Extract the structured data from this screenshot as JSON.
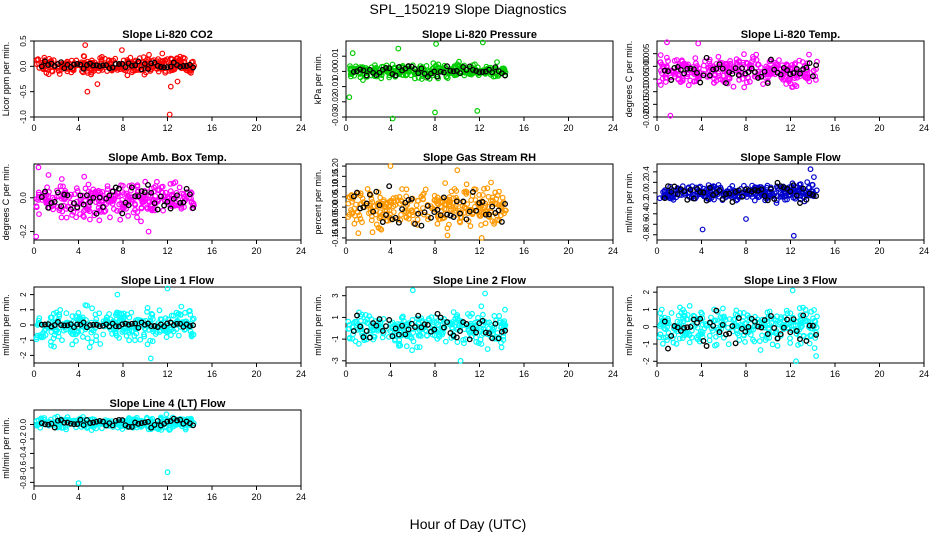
{
  "figure": {
    "title": "SPL_150219  Slope Diagnostics",
    "xlabel": "Hour of Day (UTC)"
  },
  "chart_data": [
    {
      "type": "scatter",
      "title": "Slope Li-820 CO2",
      "ylabel": "Licor ppm per min.",
      "color": "#ff0000",
      "xlim": [
        0,
        24
      ],
      "ylim": [
        -1.0,
        0.5
      ],
      "xticks": [
        0,
        4,
        8,
        12,
        16,
        20,
        24
      ],
      "yticks": [
        -1.0,
        -0.5,
        0.0,
        0.5
      ],
      "ytick_labels": [
        "-1.0",
        "-0.5",
        "0.0",
        "0.5"
      ],
      "x_range": [
        0.2,
        14.4
      ],
      "center": 0.02,
      "spread": 0.14,
      "black_spread": 0.06,
      "outliers": [
        {
          "x": 12.2,
          "y": -0.95
        },
        {
          "x": 12.3,
          "y": -0.4
        },
        {
          "x": 4.8,
          "y": -0.5
        },
        {
          "x": 5.7,
          "y": -0.35
        },
        {
          "x": 7.9,
          "y": 0.32
        },
        {
          "x": 4.6,
          "y": 0.42
        },
        {
          "x": 12.9,
          "y": -0.3
        }
      ]
    },
    {
      "type": "scatter",
      "title": "Slope Li-820 Pressure",
      "ylabel": "kPa per min.",
      "color": "#00cc00",
      "xlim": [
        0,
        24
      ],
      "ylim": [
        -0.03,
        0.02
      ],
      "xticks": [
        0,
        4,
        8,
        12,
        16,
        20,
        24
      ],
      "yticks": [
        -0.03,
        -0.02,
        -0.01,
        0.0,
        0.01
      ],
      "ytick_labels": [
        "-0.03",
        "-0.02",
        "-0.01",
        "0.00",
        "0.01"
      ],
      "x_range": [
        0.2,
        14.4
      ],
      "center": 0.0,
      "spread": 0.004,
      "black_spread": 0.003,
      "outliers": [
        {
          "x": 4.2,
          "y": -0.031
        },
        {
          "x": 8.0,
          "y": -0.027
        },
        {
          "x": 11.8,
          "y": -0.026
        },
        {
          "x": 0.3,
          "y": -0.017
        },
        {
          "x": 12.3,
          "y": 0.019
        },
        {
          "x": 8.1,
          "y": 0.018
        },
        {
          "x": 4.7,
          "y": 0.015
        },
        {
          "x": 0.6,
          "y": 0.012
        }
      ]
    },
    {
      "type": "scatter",
      "title": "Slope Li-820 Temp.",
      "ylabel": "degrees C per min.",
      "color": "#ff00ff",
      "xlim": [
        0,
        24
      ],
      "ylim": [
        -0.02,
        0.01
      ],
      "xticks": [
        0,
        4,
        8,
        12,
        16,
        20,
        24
      ],
      "yticks": [
        -0.02,
        -0.015,
        -0.01,
        -0.005,
        0.0,
        0.005
      ],
      "ytick_labels": [
        "-0.020",
        "-0.015",
        "-0.010",
        "-0.005",
        "0.000",
        "0.005"
      ],
      "x_range": [
        0.2,
        14.4
      ],
      "center": -0.002,
      "spread": 0.0045,
      "black_spread": 0.004,
      "outliers": [
        {
          "x": 1.2,
          "y": -0.0195
        },
        {
          "x": 0.9,
          "y": 0.0095
        },
        {
          "x": 3.7,
          "y": 0.009
        }
      ]
    },
    {
      "type": "scatter",
      "title": "Slope Amb. Box Temp.",
      "ylabel": "degrees C per min.",
      "color": "#ff00ff",
      "xlim": [
        0,
        24
      ],
      "ylim": [
        -0.25,
        0.2
      ],
      "xticks": [
        0,
        4,
        8,
        12,
        16,
        20,
        24
      ],
      "yticks": [
        -0.2,
        0.0
      ],
      "ytick_labels": [
        "-0.2",
        "0.0"
      ],
      "x_range": [
        0.2,
        14.4
      ],
      "center": -0.01,
      "spread": 0.08,
      "black_spread": 0.07,
      "outliers": [
        {
          "x": 0.2,
          "y": -0.23
        },
        {
          "x": 0.4,
          "y": 0.18
        },
        {
          "x": 10.3,
          "y": -0.2
        }
      ]
    },
    {
      "type": "scatter",
      "title": "Slope Gas Stream RH",
      "ylabel": "percent per min.",
      "color": "#ff9900",
      "xlim": [
        0,
        24
      ],
      "ylim": [
        -0.16,
        0.21
      ],
      "xticks": [
        0,
        4,
        8,
        12,
        16,
        20,
        24
      ],
      "yticks": [
        -0.15,
        -0.1,
        -0.05,
        0.0,
        0.05,
        0.1,
        0.15,
        0.2
      ],
      "ytick_labels": [
        "-0.15",
        "-0.10",
        "-0.05",
        "0.00",
        "0.05",
        "0.10",
        "0.15",
        "0.20"
      ],
      "x_range": [
        0.2,
        14.4
      ],
      "center": 0.0,
      "spread": 0.075,
      "black_spread": 0.07,
      "outliers": [
        {
          "x": 4.0,
          "y": 0.2
        },
        {
          "x": 12.2,
          "y": -0.15
        },
        {
          "x": 10.0,
          "y": 0.18
        }
      ]
    },
    {
      "type": "scatter",
      "title": "Slope Sample Flow",
      "ylabel": "ml/min per min.",
      "color": "#0000cc",
      "xlim": [
        0,
        24
      ],
      "ylim": [
        -0.9,
        0.55
      ],
      "xticks": [
        0,
        4,
        8,
        12,
        16,
        20,
        24
      ],
      "yticks": [
        -0.8,
        -0.6,
        -0.4,
        -0.2,
        0.0,
        0.2,
        0.4
      ],
      "ytick_labels": [
        "-0.8",
        "-0.6",
        "-0.4",
        "-0.2",
        "0.0",
        "0.2",
        "0.4"
      ],
      "x_range": [
        0.2,
        14.4
      ],
      "center": 0.0,
      "spread": 0.12,
      "black_spread": 0.15,
      "outliers": [
        {
          "x": 12.3,
          "y": -0.82
        },
        {
          "x": 4.1,
          "y": -0.7
        },
        {
          "x": 8.0,
          "y": -0.5
        },
        {
          "x": 13.8,
          "y": 0.45
        },
        {
          "x": 14.1,
          "y": 0.3
        }
      ]
    },
    {
      "type": "scatter",
      "title": "Slope Line 1 Flow",
      "ylabel": "ml/min per min.",
      "color": "#00ffff",
      "xlim": [
        0,
        24
      ],
      "ylim": [
        -2.5,
        2.5
      ],
      "xticks": [
        0,
        4,
        8,
        12,
        16,
        20,
        24
      ],
      "yticks": [
        -2,
        -1,
        0,
        1,
        2
      ],
      "ytick_labels": [
        "-2",
        "-1",
        "0",
        "1",
        "2"
      ],
      "x_range": [
        0.2,
        14.4
      ],
      "center": 0.0,
      "spread": 0.9,
      "black_spread": 0.15,
      "outliers": [
        {
          "x": 12.0,
          "y": 2.4
        },
        {
          "x": 10.5,
          "y": -2.2
        },
        {
          "x": 7.5,
          "y": 2.0
        }
      ]
    },
    {
      "type": "scatter",
      "title": "Slope Line 2 Flow",
      "ylabel": "ml/min per min.",
      "color": "#00ffff",
      "xlim": [
        0,
        24
      ],
      "ylim": [
        -3.2,
        3.8
      ],
      "xticks": [
        0,
        4,
        8,
        12,
        16,
        20,
        24
      ],
      "yticks": [
        -3,
        -1,
        1,
        3
      ],
      "ytick_labels": [
        "-3",
        "-1",
        "1",
        "3"
      ],
      "x_range": [
        0.2,
        14.4
      ],
      "center": 0.0,
      "spread": 1.2,
      "black_spread": 1.1,
      "outliers": [
        {
          "x": 6.0,
          "y": 3.5
        },
        {
          "x": 10.3,
          "y": -3.0
        },
        {
          "x": 12.5,
          "y": 3.2
        }
      ]
    },
    {
      "type": "scatter",
      "title": "Slope Line 3 Flow",
      "ylabel": "ml/min per min.",
      "color": "#00ffff",
      "xlim": [
        0,
        24
      ],
      "ylim": [
        -2.1,
        2.3
      ],
      "xticks": [
        0,
        4,
        8,
        12,
        16,
        20,
        24
      ],
      "yticks": [
        -2,
        -1,
        0,
        1,
        2
      ],
      "ytick_labels": [
        "-2",
        "-1",
        "0",
        "1",
        "2"
      ],
      "x_range": [
        0.2,
        14.4
      ],
      "center": 0.0,
      "spread": 0.8,
      "black_spread": 0.9,
      "outliers": [
        {
          "x": 12.5,
          "y": -2.0
        },
        {
          "x": 12.2,
          "y": 2.1
        },
        {
          "x": 14.3,
          "y": -1.7
        }
      ]
    },
    {
      "type": "scatter",
      "title": "Slope Line 4 (LT) Flow",
      "ylabel": "ml/min per min.",
      "color": "#00ffff",
      "xlim": [
        0,
        24
      ],
      "ylim": [
        -0.85,
        0.2
      ],
      "xticks": [
        0,
        4,
        8,
        12,
        16,
        20,
        24
      ],
      "yticks": [
        -0.8,
        -0.6,
        -0.4,
        -0.2,
        0.0
      ],
      "ytick_labels": [
        "-0.8",
        "-0.6",
        "-0.4",
        "-0.2",
        "0.0"
      ],
      "x_range": [
        0.2,
        14.4
      ],
      "center": 0.02,
      "spread": 0.06,
      "black_spread": 0.05,
      "outliers": [
        {
          "x": 4.0,
          "y": -0.81
        },
        {
          "x": 12.0,
          "y": -0.66
        },
        {
          "x": 11.9,
          "y": 0.14
        }
      ]
    }
  ]
}
